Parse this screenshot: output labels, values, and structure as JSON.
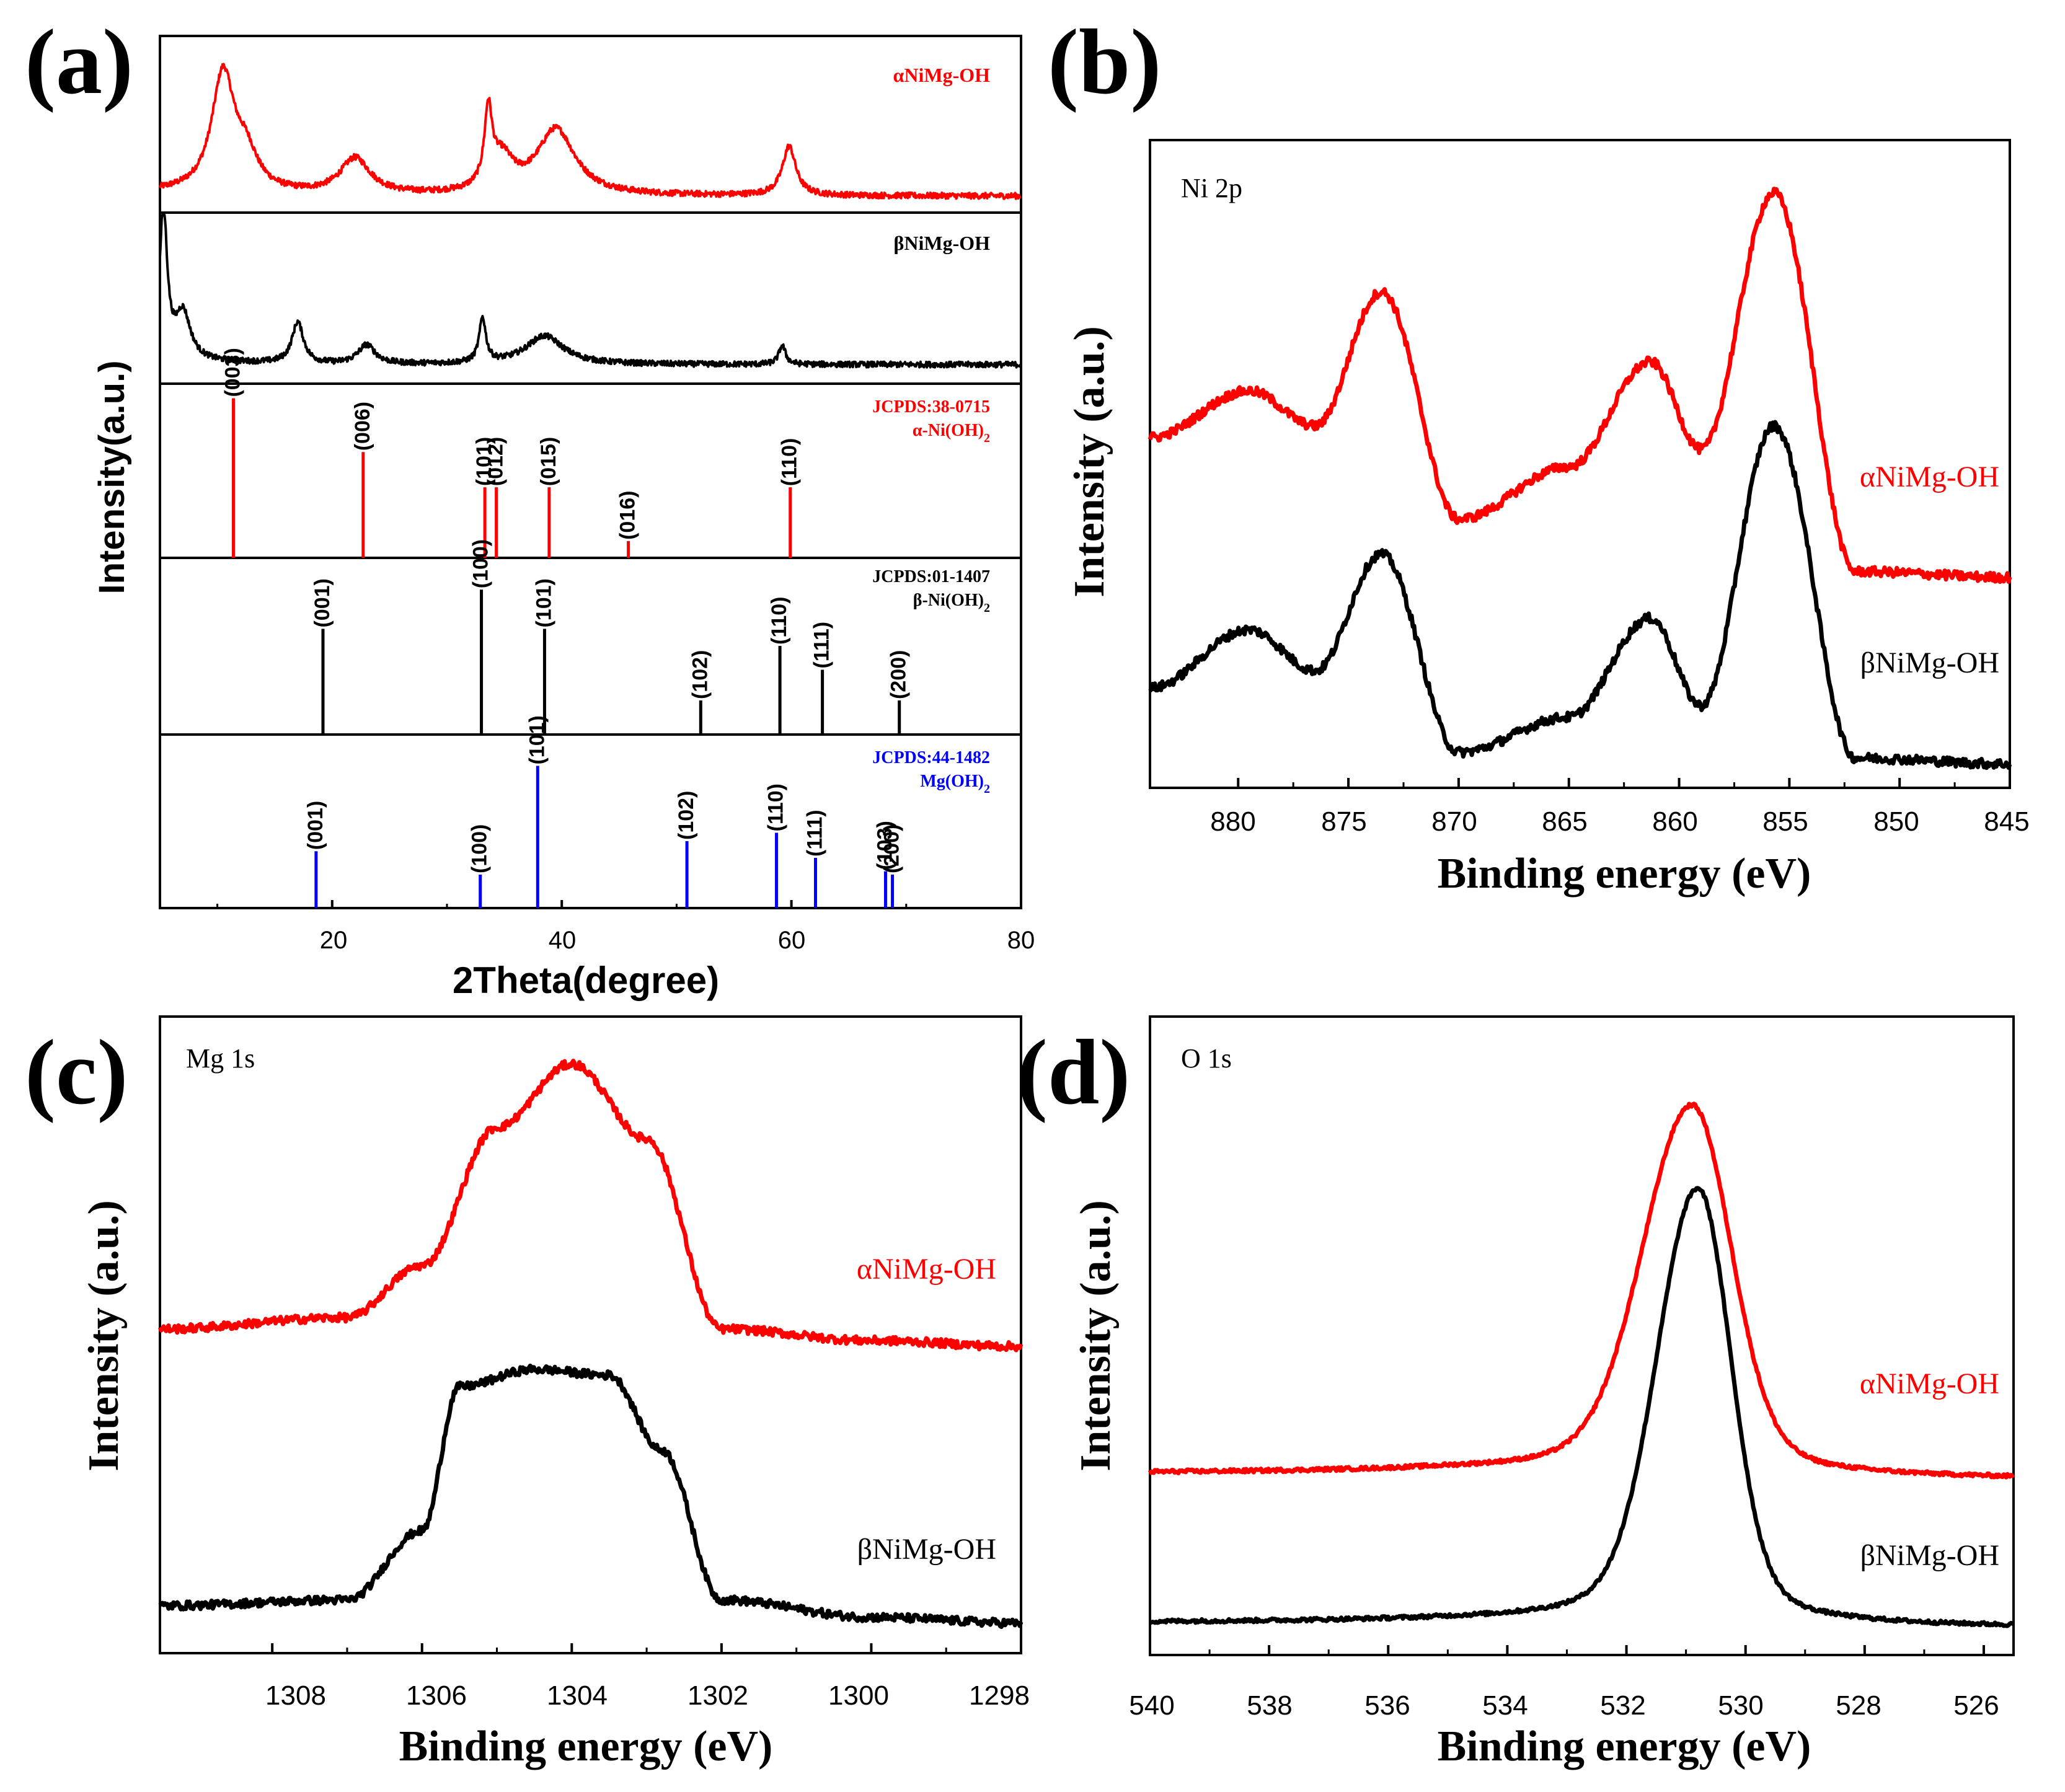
{
  "figure": {
    "panels": [
      "(a)",
      "(b)",
      "(c)",
      "(d)"
    ]
  },
  "colors": {
    "alpha": "#ff0000",
    "beta": "#000000",
    "mg": "#0000ff",
    "axis": "#000000"
  },
  "chart_data": [
    {
      "id": "a",
      "panel_label": "(a)",
      "type": "line+stick",
      "xlabel": "2Theta(degree)",
      "ylabel": "Intensity(a.u.)",
      "xlim": [
        5,
        80
      ],
      "xticks": [
        "20",
        "40",
        "60",
        "80"
      ],
      "series": [
        {
          "name": "αNiMg-OH",
          "color": "#ff0000",
          "baseline": 0.1,
          "peaks": [
            [
              10.5,
              0.72,
              1.2
            ],
            [
              12.5,
              0.2,
              1.2
            ],
            [
              22.0,
              0.22,
              1.6
            ],
            [
              33.6,
              0.45,
              0.4
            ],
            [
              34.8,
              0.2,
              1.2
            ],
            [
              39.5,
              0.4,
              2.0
            ],
            [
              59.8,
              0.3,
              0.7
            ]
          ]
        },
        {
          "name": "βNiMg-OH",
          "color": "#000000",
          "baseline": 0.12,
          "peaks": [
            [
              5.3,
              0.95,
              0.4
            ],
            [
              7.0,
              0.3,
              0.8
            ],
            [
              17.0,
              0.26,
              0.6
            ],
            [
              23.0,
              0.12,
              0.9
            ],
            [
              33.1,
              0.28,
              0.35
            ],
            [
              38.5,
              0.18,
              2.0
            ],
            [
              59.2,
              0.12,
              0.35
            ]
          ]
        }
      ],
      "references": [
        {
          "name": "JCPDS:38-0715",
          "phase": "α-Ni(OH)",
          "subscript": "2",
          "color": "#ff0000",
          "sticks": [
            {
              "pos": 11.4,
              "hkl": "(003)",
              "h": 0.95
            },
            {
              "pos": 22.7,
              "hkl": "(006)",
              "h": 0.63
            },
            {
              "pos": 33.3,
              "hkl": "(101)",
              "h": 0.42
            },
            {
              "pos": 34.3,
              "hkl": "(012)",
              "h": 0.42
            },
            {
              "pos": 38.9,
              "hkl": "(015)",
              "h": 0.42
            },
            {
              "pos": 45.8,
              "hkl": "(016)",
              "h": 0.1
            },
            {
              "pos": 59.9,
              "hkl": "(110)",
              "h": 0.42
            }
          ]
        },
        {
          "name": "JCPDS:01-1407",
          "phase": "β-Ni(OH)",
          "subscript": "2",
          "color": "#000000",
          "sticks": [
            {
              "pos": 19.2,
              "hkl": "(001)",
              "h": 0.62
            },
            {
              "pos": 33.0,
              "hkl": "(100)",
              "h": 0.85
            },
            {
              "pos": 38.5,
              "hkl": "(101)",
              "h": 0.62
            },
            {
              "pos": 52.1,
              "hkl": "(102)",
              "h": 0.2
            },
            {
              "pos": 59.0,
              "hkl": "(110)",
              "h": 0.52
            },
            {
              "pos": 62.7,
              "hkl": "(111)",
              "h": 0.38
            },
            {
              "pos": 69.4,
              "hkl": "(200)",
              "h": 0.2
            }
          ]
        },
        {
          "name": "JCPDS:44-1482",
          "phase": "Mg(OH)",
          "subscript": "2",
          "color": "#0000ff",
          "sticks": [
            {
              "pos": 18.6,
              "hkl": "(001)",
              "h": 0.34
            },
            {
              "pos": 32.9,
              "hkl": "(100)",
              "h": 0.2
            },
            {
              "pos": 37.9,
              "hkl": "(101)",
              "h": 0.85
            },
            {
              "pos": 50.9,
              "hkl": "(102)",
              "h": 0.4
            },
            {
              "pos": 58.7,
              "hkl": "(110)",
              "h": 0.45
            },
            {
              "pos": 62.1,
              "hkl": "(111)",
              "h": 0.3
            },
            {
              "pos": 68.2,
              "hkl": "(103)",
              "h": 0.22
            },
            {
              "pos": 68.8,
              "hkl": "(200)",
              "h": 0.2
            }
          ]
        }
      ]
    },
    {
      "id": "b",
      "panel_label": "(b)",
      "type": "line",
      "annotation": "Ni 2p",
      "xlabel": "Binding energy (eV)",
      "ylabel": "Intensity (a.u.)",
      "xlim": [
        884,
        845
      ],
      "xticks": [
        "880",
        "875",
        "870",
        "865",
        "860",
        "855",
        "850",
        "845"
      ],
      "ylim": [
        0,
        1
      ],
      "series": [
        {
          "name": "αNiMg-OH",
          "color": "#ff0000",
          "spectrum": [
            [
              884,
              0.58
            ],
            [
              879.5,
              0.66
            ],
            [
              876.5,
              0.6
            ],
            [
              873.5,
              0.83
            ],
            [
              870,
              0.44
            ],
            [
              865,
              0.53
            ],
            [
              861.3,
              0.71
            ],
            [
              859,
              0.56
            ],
            [
              855.7,
              1.0
            ],
            [
              852,
              0.35
            ],
            [
              845,
              0.34
            ]
          ]
        },
        {
          "name": "βNiMg-OH",
          "color": "#000000",
          "spectrum": [
            [
              884,
              0.15
            ],
            [
              879.5,
              0.25
            ],
            [
              876.5,
              0.18
            ],
            [
              873.5,
              0.38
            ],
            [
              870,
              0.04
            ],
            [
              865,
              0.1
            ],
            [
              861.3,
              0.27
            ],
            [
              859,
              0.12
            ],
            [
              855.7,
              0.6
            ],
            [
              852,
              0.03
            ],
            [
              845,
              0.02
            ]
          ]
        }
      ]
    },
    {
      "id": "c",
      "panel_label": "(c)",
      "type": "line",
      "annotation": "Mg 1s",
      "xlabel": "Binding energy (eV)",
      "ylabel": "Intensity (a.u.)",
      "xlim": [
        1309.5,
        1298
      ],
      "xticks": [
        "1308",
        "1306",
        "1304",
        "1302",
        "1300",
        "1298"
      ],
      "ylim": [
        0,
        1
      ],
      "series": [
        {
          "name": "αNiMg-OH",
          "color": "#ff0000",
          "spectrum": [
            [
              1309.5,
              0.53
            ],
            [
              1307,
              0.55
            ],
            [
              1306,
              0.64
            ],
            [
              1305,
              0.88
            ],
            [
              1304,
              0.99
            ],
            [
              1303,
              0.86
            ],
            [
              1302,
              0.53
            ],
            [
              1300,
              0.51
            ],
            [
              1298,
              0.5
            ]
          ]
        },
        {
          "name": "βNiMg-OH",
          "color": "#000000",
          "spectrum": [
            [
              1309.5,
              0.05
            ],
            [
              1307,
              0.06
            ],
            [
              1306,
              0.18
            ],
            [
              1305.5,
              0.43
            ],
            [
              1304.5,
              0.46
            ],
            [
              1303.5,
              0.45
            ],
            [
              1302.8,
              0.32
            ],
            [
              1302,
              0.06
            ],
            [
              1300,
              0.03
            ],
            [
              1298,
              0.02
            ]
          ]
        }
      ]
    },
    {
      "id": "d",
      "panel_label": "(d)",
      "type": "line",
      "annotation": "O 1s",
      "xlabel": "Binding energy (eV)",
      "ylabel": "Intensity (a.u.)",
      "xlim": [
        540,
        525.5
      ],
      "xticks": [
        "540",
        "538",
        "536",
        "534",
        "532",
        "530",
        "528",
        "526"
      ],
      "ylim": [
        0,
        1
      ],
      "series": [
        {
          "name": "αNiMg-OH",
          "color": "#ff0000",
          "peak": {
            "center": 530.9,
            "height": 0.63,
            "width": 0.9,
            "tail": 0.05,
            "base": 0.27
          }
        },
        {
          "name": "βNiMg-OH",
          "color": "#000000",
          "peak": {
            "center": 530.8,
            "height": 0.74,
            "width": 0.75,
            "tail": 0.04,
            "base": 0.02
          }
        }
      ]
    }
  ]
}
